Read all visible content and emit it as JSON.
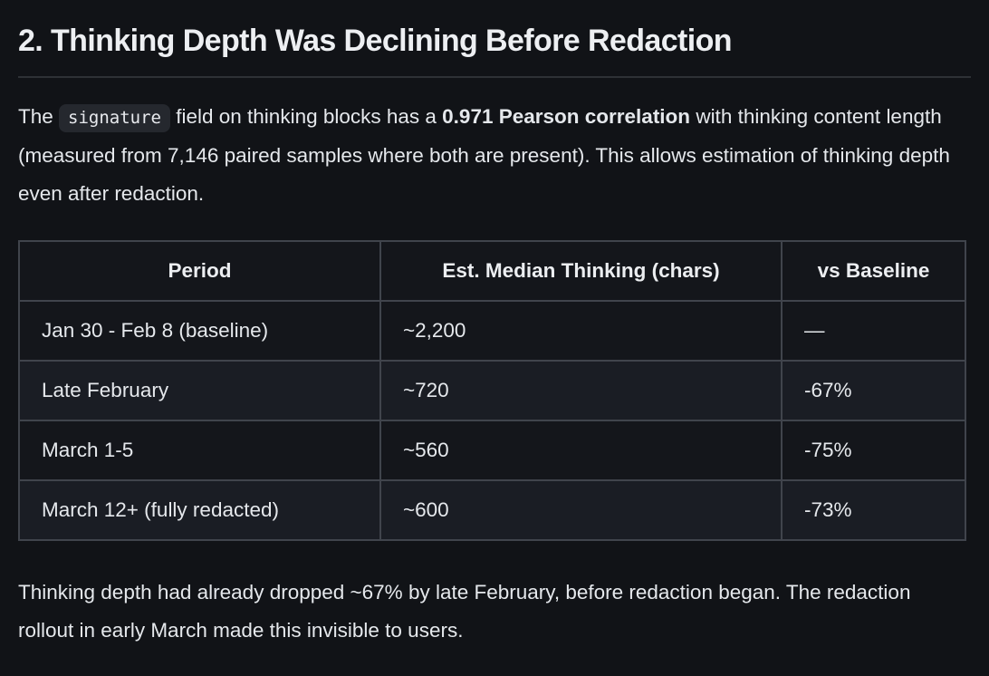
{
  "theme": {
    "background": "#111317",
    "text": "#e5e8ec",
    "heading_text": "#edeff2",
    "divider": "#2e3136",
    "code_chip_bg": "#25282e",
    "table_border": "#40444c",
    "table_row_dark_bg": "#14161b",
    "table_row_light_bg": "#1a1d24"
  },
  "heading": {
    "text": "2. Thinking Depth Was Declining Before Redaction"
  },
  "intro_paragraph": {
    "part1": "The ",
    "code": "signature",
    "part2": " field on thinking blocks has a ",
    "bold": "0.971 Pearson correlation",
    "part3": " with thinking content length (measured from 7,146 paired samples where both are present). This allows estimation of thinking depth even after redaction."
  },
  "table": {
    "headers": [
      "Period",
      "Est. Median Thinking (chars)",
      "vs Baseline"
    ],
    "rows": [
      [
        "Jan 30 - Feb 8 (baseline)",
        "~2,200",
        "—"
      ],
      [
        "Late February",
        "~720",
        "-67%"
      ],
      [
        "March 1-5",
        "~560",
        "-75%"
      ],
      [
        "March 12+ (fully redacted)",
        "~600",
        "-73%"
      ]
    ]
  },
  "outro_paragraph": {
    "text": "Thinking depth had already dropped ~67% by late February, before redaction began. The redaction rollout in early March made this invisible to users."
  }
}
